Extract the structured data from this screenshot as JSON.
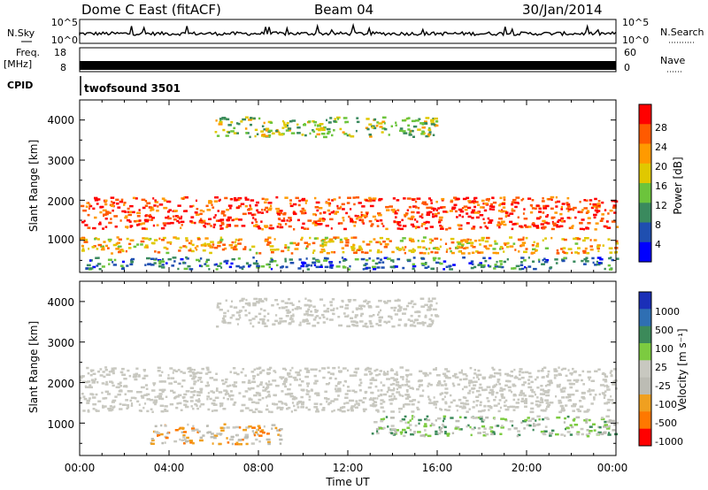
{
  "header": {
    "title_left": "Dome C East (fitACF)",
    "title_center": "Beam 04",
    "title_right": "30/Jan/2014"
  },
  "nsky": {
    "label": "N.Sky",
    "ticks_left": [
      "10^5",
      "10^0"
    ],
    "ticks_right": [
      "10^5",
      "10^0"
    ],
    "right_label": "N.Search"
  },
  "freq": {
    "label_line1": "Freq.",
    "label_line2": "[MHz]",
    "ticks_left": [
      "18",
      "8"
    ],
    "ticks_right": [
      "60",
      "0"
    ],
    "right_label": "Nave"
  },
  "cpid": {
    "label": "CPID",
    "program": "twofsound 3501"
  },
  "power_panel": {
    "ylabel": "Slant Range [km]",
    "yticks": [
      "1000",
      "2000",
      "3000",
      "4000"
    ],
    "colorbar_label": "Power [dB]",
    "colorbar_ticks": [
      "4",
      "8",
      "12",
      "16",
      "20",
      "24",
      "28"
    ],
    "colors": [
      "#0000ff",
      "#1f4fb0",
      "#3a8a5e",
      "#6cc43c",
      "#e0c800",
      "#ff9a00",
      "#ff5a00",
      "#ff0000"
    ]
  },
  "velocity_panel": {
    "ylabel": "Slant Range [km]",
    "yticks": [
      "1000",
      "2000",
      "3000",
      "4000"
    ],
    "colorbar_label": "Velocity [m s⁻¹]",
    "colorbar_ticks": [
      "1000",
      "500",
      "100",
      "25",
      "-25",
      "-100",
      "-500",
      "-1000"
    ],
    "colors": [
      "#1a2fb8",
      "#2f6fb3",
      "#3c8a5a",
      "#7ccb40",
      "#c8c8c0",
      "#bcbcb4",
      "#f0a020",
      "#ff7800",
      "#ff0000"
    ]
  },
  "xaxis": {
    "label": "Time UT",
    "ticks": [
      "00:00",
      "04:00",
      "08:00",
      "12:00",
      "16:00",
      "20:00",
      "00:00"
    ]
  },
  "chart_data": {
    "type": "heatmap",
    "x": [
      "00:00",
      "04:00",
      "08:00",
      "12:00",
      "16:00",
      "20:00",
      "00:00"
    ],
    "xlabel": "Time UT",
    "ylabel": "Slant Range [km]",
    "ylim": [
      200,
      4500
    ],
    "xlim": [
      0,
      24
    ],
    "panels": [
      {
        "name": "Power [dB]",
        "zlim": [
          0,
          30
        ],
        "bands": [
          {
            "time_range": [
              0,
              24
            ],
            "range_km": [
              1300,
              2100
            ],
            "typical_value": 26
          },
          {
            "time_range": [
              0,
              24
            ],
            "range_km": [
              700,
              1100
            ],
            "typical_value": 20
          },
          {
            "time_range": [
              6,
              16
            ],
            "range_km": [
              3600,
              4100
            ],
            "typical_value": 14
          },
          {
            "time_range": [
              0,
              24
            ],
            "range_km": [
              300,
              600
            ],
            "typical_value": 8
          }
        ]
      },
      {
        "name": "Velocity [m s⁻¹]",
        "zlim": [
          -1000,
          1000
        ],
        "bands": [
          {
            "time_range": [
              0,
              24
            ],
            "range_km": [
              1300,
              2400
            ],
            "typical_value": 0
          },
          {
            "time_range": [
              3,
              9
            ],
            "range_km": [
              500,
              1000
            ],
            "typical_value": -300
          },
          {
            "time_range": [
              13,
              24
            ],
            "range_km": [
              700,
              1200
            ],
            "typical_value": 100
          },
          {
            "time_range": [
              6,
              16
            ],
            "range_km": [
              3400,
              4100
            ],
            "typical_value": 0
          }
        ]
      }
    ]
  }
}
